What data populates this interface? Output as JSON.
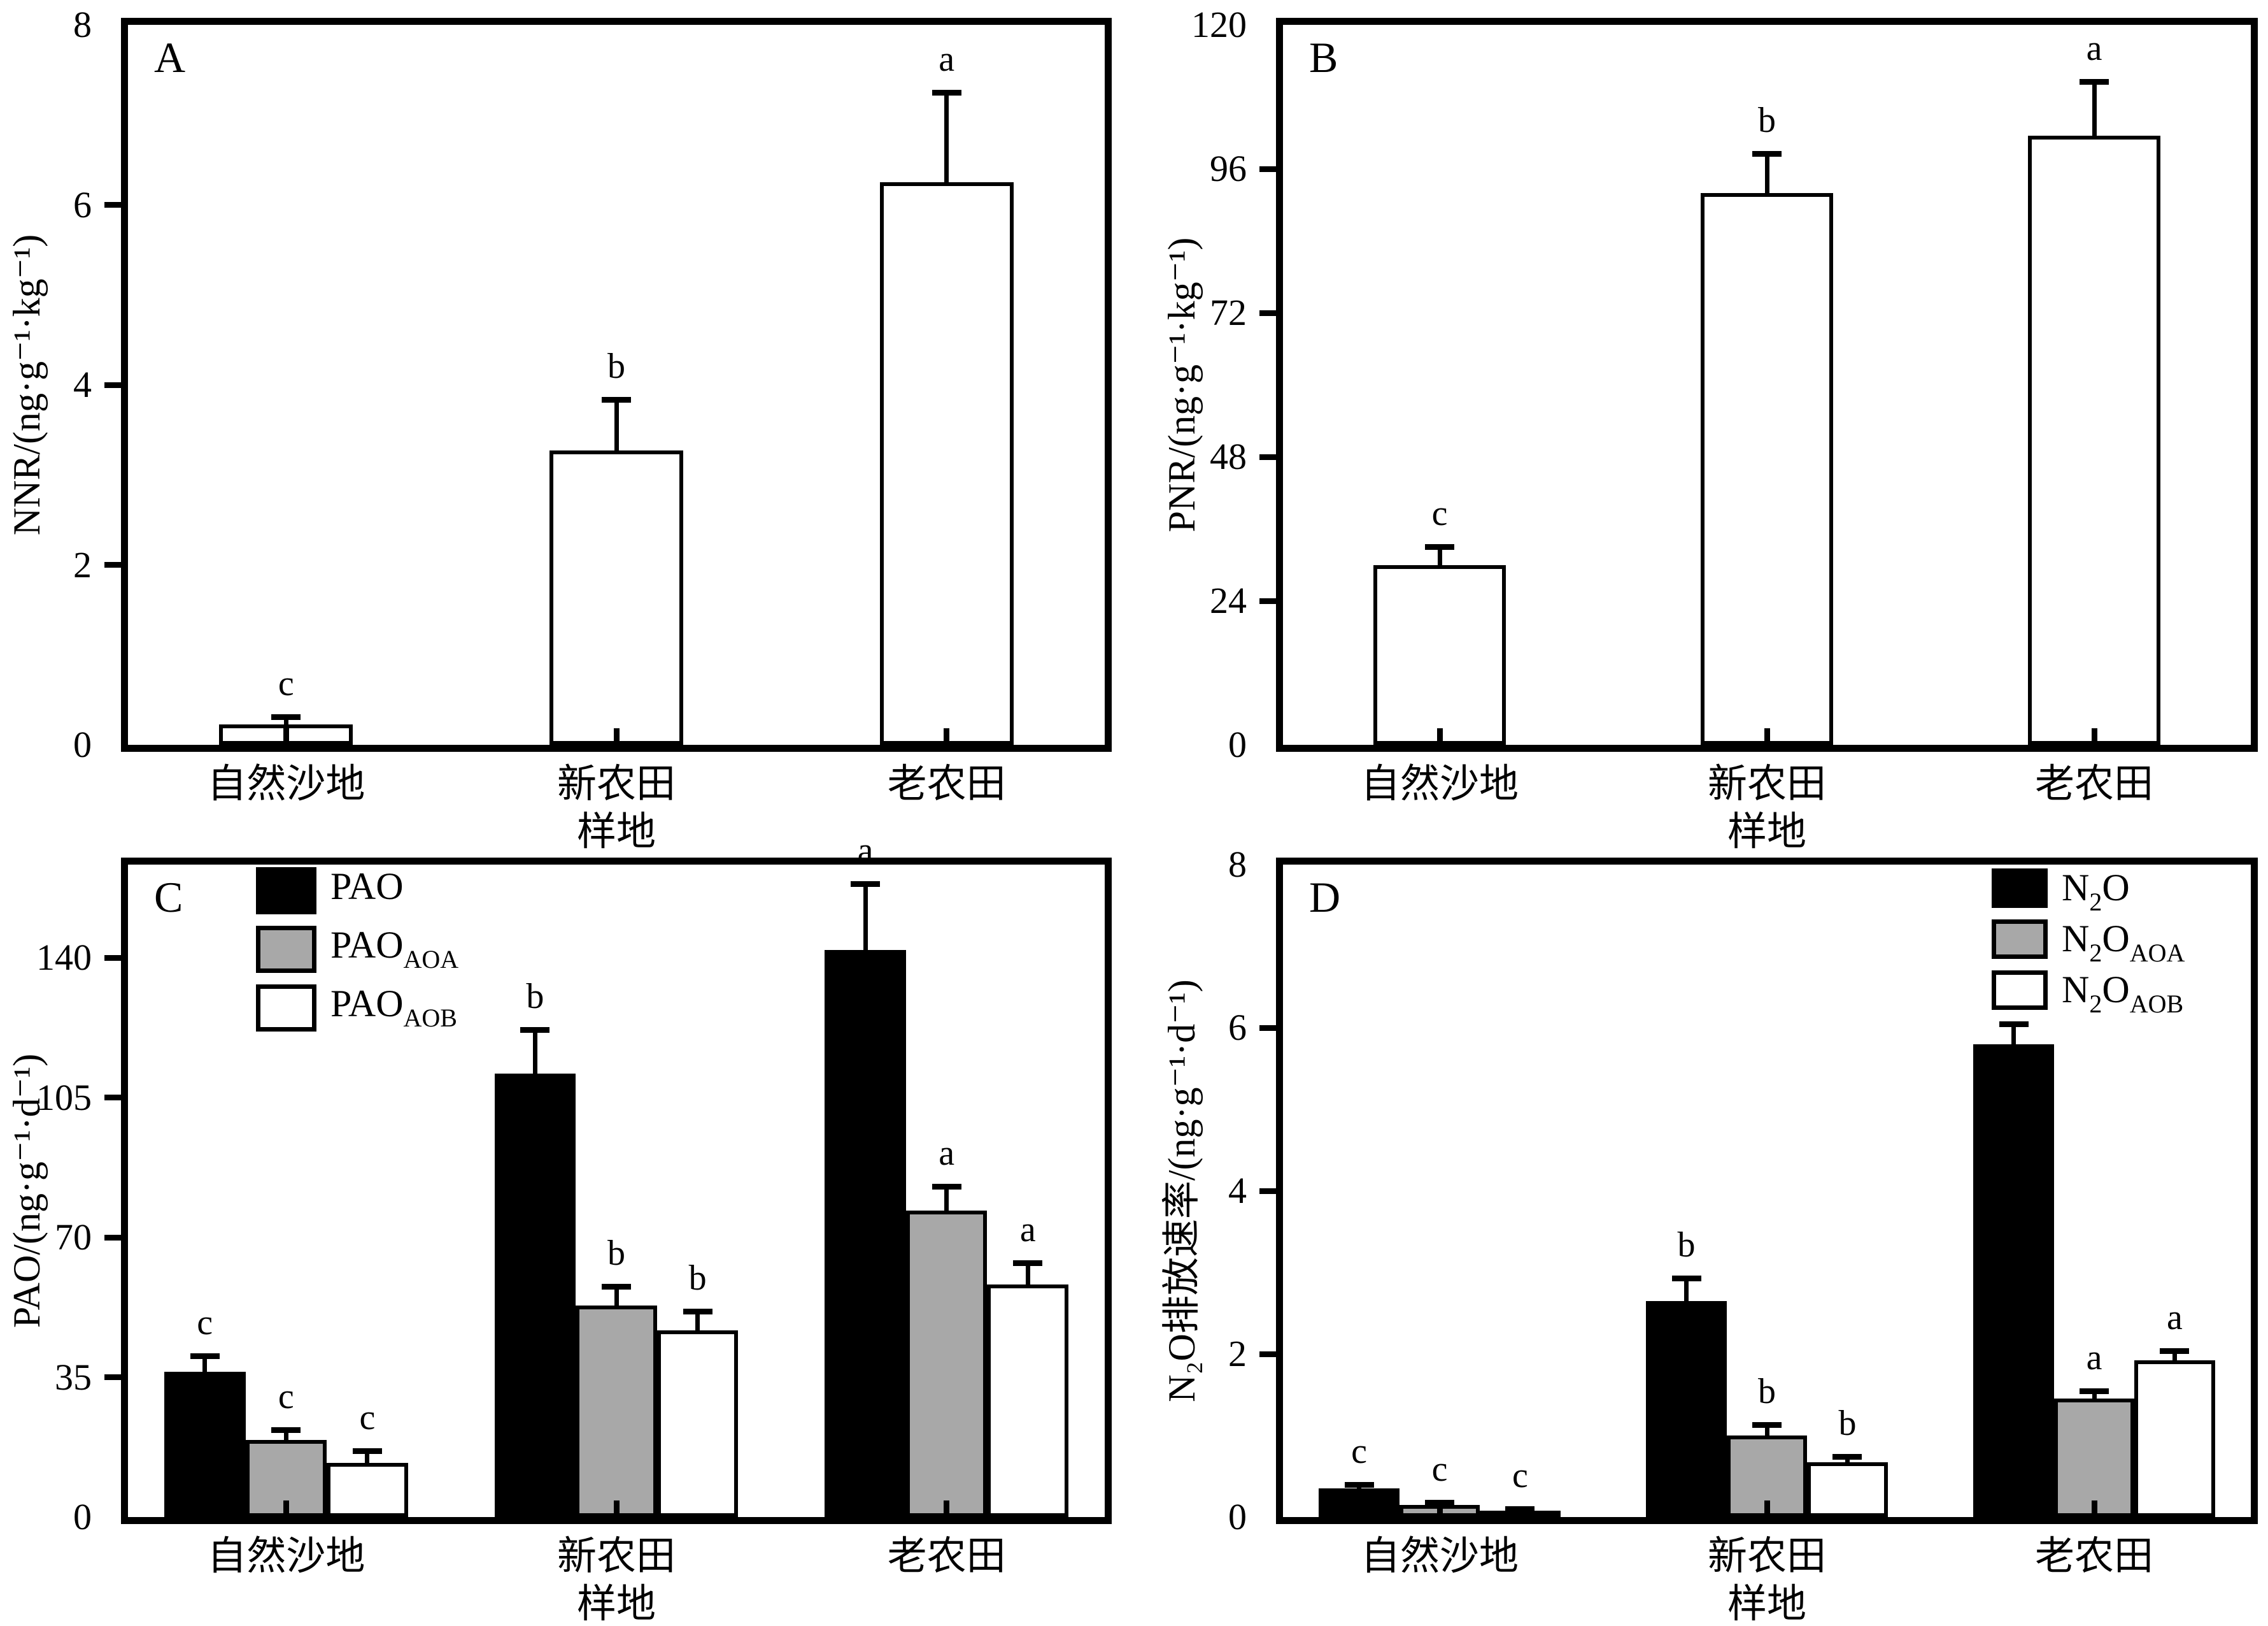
{
  "figure": {
    "background": "#ffffff",
    "site_categories": [
      "自然沙地",
      "新农田",
      "老农田"
    ],
    "x_axis_title": "样地"
  },
  "colors": {
    "bar_black": "#000000",
    "bar_gray": "#a8a8a8",
    "bar_white": "#ffffff",
    "axis": "#000000"
  },
  "chart_data": [
    {
      "panel": "A",
      "type": "bar",
      "title": "",
      "ylabel": "NNR/(ng·g⁻¹·kg⁻¹)",
      "xlabel": "样地",
      "categories": [
        "自然沙地",
        "新农田",
        "老农田"
      ],
      "ylim": [
        0,
        8
      ],
      "yticks": [
        0,
        2,
        4,
        6,
        8
      ],
      "grid": false,
      "legend_position": null,
      "series": [
        {
          "label_parts": {
            "t1": "",
            "s1": "",
            "t2": "",
            "s2": ""
          },
          "fill": "#ffffff",
          "values": [
            0.23,
            3.27,
            6.25
          ],
          "errors": [
            0.08,
            0.57,
            1.0
          ],
          "letters": [
            "c",
            "b",
            "a"
          ]
        }
      ]
    },
    {
      "panel": "B",
      "type": "bar",
      "title": "",
      "ylabel": "PNR/(ng·g⁻¹·kg⁻¹)",
      "xlabel": "样地",
      "categories": [
        "自然沙地",
        "新农田",
        "老农田"
      ],
      "ylim": [
        0,
        120
      ],
      "yticks": [
        0,
        24,
        48,
        72,
        96,
        120
      ],
      "grid": false,
      "legend_position": null,
      "series": [
        {
          "label_parts": {
            "t1": "",
            "s1": "",
            "t2": "",
            "s2": ""
          },
          "fill": "#ffffff",
          "values": [
            30,
            92,
            101.5
          ],
          "errors": [
            3,
            6.5,
            9
          ],
          "letters": [
            "c",
            "b",
            "a"
          ]
        }
      ]
    },
    {
      "panel": "C",
      "type": "bar",
      "title": "",
      "ylabel": "PAO/(ng·g⁻¹·d⁻¹)",
      "xlabel": "样地",
      "categories": [
        "自然沙地",
        "新农田",
        "老农田"
      ],
      "ylim": [
        0,
        163.3
      ],
      "yticks": [
        0,
        35,
        70,
        105,
        140
      ],
      "grid": false,
      "legend_position": "top-left",
      "series": [
        {
          "label_parts": {
            "t1": "PAO",
            "s1": "",
            "t2": "",
            "s2": ""
          },
          "fill": "#000000",
          "values": [
            36.3,
            111,
            142
          ],
          "errors": [
            4,
            11,
            16.5
          ],
          "letters": [
            "c",
            "b",
            "a"
          ]
        },
        {
          "label_parts": {
            "t1": "PAO",
            "s1": "AOA",
            "t2": "",
            "s2": ""
          },
          "fill": "#a8a8a8",
          "values": [
            19.3,
            53,
            76.7
          ],
          "errors": [
            2.5,
            4.7,
            6
          ],
          "letters": [
            "c",
            "b",
            "a"
          ]
        },
        {
          "label_parts": {
            "t1": "PAO",
            "s1": "AOB",
            "t2": "",
            "s2": ""
          },
          "fill": "#ffffff",
          "values": [
            13.6,
            46.8,
            58.2
          ],
          "errors": [
            3,
            4.7,
            5.5
          ],
          "letters": [
            "c",
            "b",
            "a"
          ]
        }
      ]
    },
    {
      "panel": "D",
      "type": "bar",
      "title": "",
      "ylabel": "N₂O排放速率/(ng·g⁻¹·d⁻¹)",
      "xlabel": "样地",
      "categories": [
        "自然沙地",
        "新农田",
        "老农田"
      ],
      "ylim": [
        0,
        8
      ],
      "yticks": [
        0,
        2,
        4,
        6,
        8
      ],
      "grid": false,
      "legend_position": "top-right",
      "series": [
        {
          "label_parts": {
            "t1": "N",
            "s1": "2",
            "t2": "O",
            "s2": ""
          },
          "fill": "#000000",
          "values": [
            0.35,
            2.65,
            5.8
          ],
          "errors": [
            0.05,
            0.28,
            0.25
          ],
          "letters": [
            "c",
            "b",
            "a"
          ]
        },
        {
          "label_parts": {
            "t1": "N",
            "s1": "2",
            "t2": "O",
            "s2": "AOA"
          },
          "fill": "#a8a8a8",
          "values": [
            0.15,
            1.0,
            1.45
          ],
          "errors": [
            0.03,
            0.13,
            0.1
          ],
          "letters": [
            "c",
            "b",
            "a"
          ]
        },
        {
          "label_parts": {
            "t1": "N",
            "s1": "2",
            "t2": "O",
            "s2": "AOB"
          },
          "fill": "#ffffff",
          "values": [
            0.08,
            0.67,
            1.92
          ],
          "errors": [
            0.02,
            0.07,
            0.12
          ],
          "letters": [
            "c",
            "b",
            "a"
          ]
        }
      ]
    }
  ]
}
